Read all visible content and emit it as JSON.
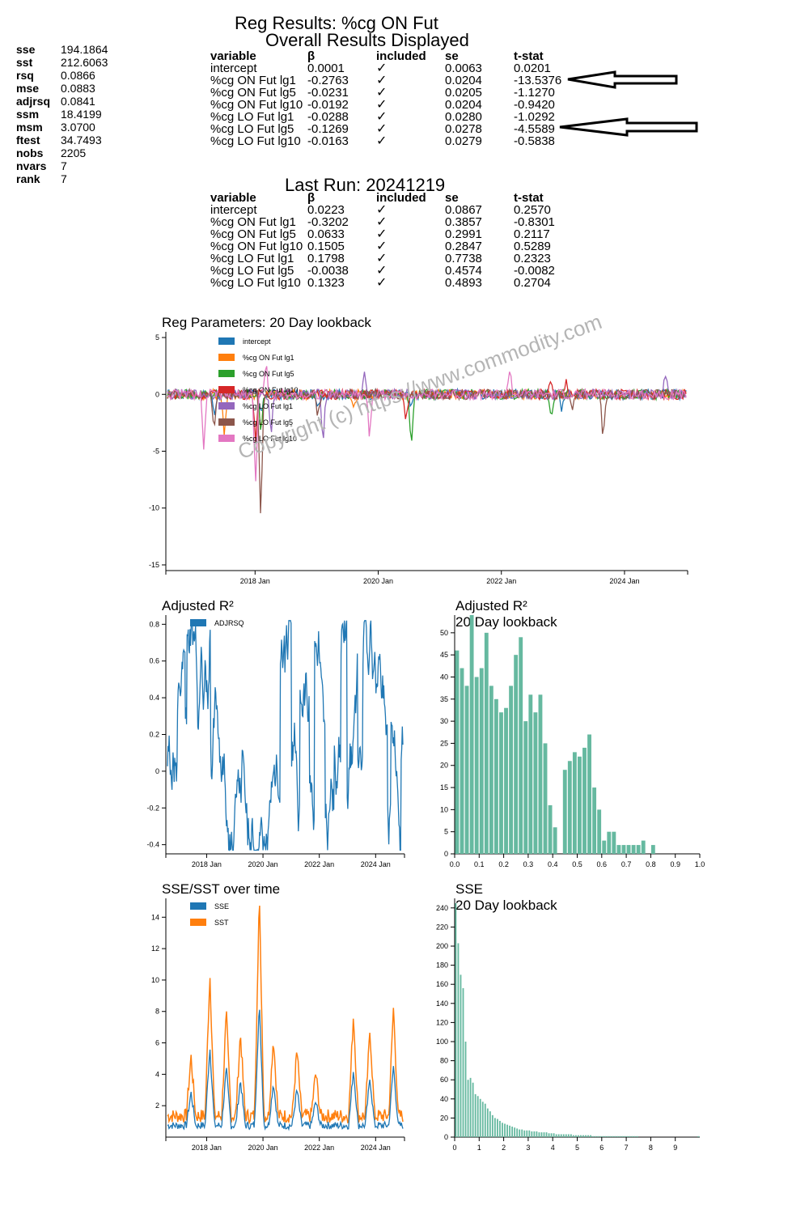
{
  "summary_stats": [
    {
      "key": "sse",
      "value": "194.1864"
    },
    {
      "key": "sst",
      "value": "212.6063"
    },
    {
      "key": "rsq",
      "value": "0.0866"
    },
    {
      "key": "mse",
      "value": "0.0883"
    },
    {
      "key": "adjrsq",
      "value": "0.0841"
    },
    {
      "key": "ssm",
      "value": "18.4199"
    },
    {
      "key": "msm",
      "value": "3.0700"
    },
    {
      "key": "ftest",
      "value": "34.7493"
    },
    {
      "key": "nobs",
      "value": "2205"
    },
    {
      "key": "nvars",
      "value": "7"
    },
    {
      "key": "rank",
      "value": "7"
    }
  ],
  "main_title": "Reg Results: %cg ON Fut",
  "overall_subtitle": "Overall Results Displayed",
  "table_headers": [
    "variable",
    "β",
    "included",
    "se",
    "t-stat"
  ],
  "check_mark": "✓",
  "overall_rows": [
    [
      "intercept",
      "0.0001",
      "0.0063",
      "0.0201"
    ],
    [
      "%cg ON Fut lg1",
      "-0.2763",
      "0.0204",
      "-13.5376"
    ],
    [
      "%cg ON Fut lg5",
      "-0.0231",
      "0.0205",
      "-1.1270"
    ],
    [
      "%cg ON Fut lg10",
      "-0.0192",
      "0.0204",
      "-0.9420"
    ],
    [
      "%cg LO Fut lg1",
      "-0.0288",
      "0.0280",
      "-1.0292"
    ],
    [
      "%cg LO Fut lg5",
      "-0.1269",
      "0.0278",
      "-4.5589"
    ],
    [
      "%cg LO Fut lg10",
      "-0.0163",
      "0.0279",
      "-0.5838"
    ]
  ],
  "last_run_title": "Last Run: 20241219",
  "last_run_rows": [
    [
      "intercept",
      "0.0223",
      "0.0867",
      "0.2570"
    ],
    [
      "%cg ON Fut lg1",
      "-0.3202",
      "0.3857",
      "-0.8301"
    ],
    [
      "%cg ON Fut lg5",
      "0.0633",
      "0.2991",
      "0.2117"
    ],
    [
      "%cg ON Fut lg10",
      "0.1505",
      "0.2847",
      "0.5289"
    ],
    [
      "%cg LO Fut lg1",
      "0.1798",
      "0.7738",
      "0.2323"
    ],
    [
      "%cg LO Fut lg5",
      "-0.0038",
      "0.4574",
      "-0.0082"
    ],
    [
      "%cg LO Fut lg10",
      "0.1323",
      "0.4893",
      "0.2704"
    ]
  ],
  "watermark": "Copyright (c) https://www.commodity.com",
  "colors": {
    "intercept": "#1f77b4",
    "on1": "#ff7f0e",
    "on5": "#2ca02c",
    "on10": "#d62728",
    "lo1": "#9467bd",
    "lo5": "#8c564b",
    "lo10": "#e377c2",
    "hist": "#66b9a0"
  },
  "chart_data": [
    {
      "type": "line",
      "title": "Reg Parameters: 20 Day lookback",
      "ylim": [
        -15.5,
        5.5
      ],
      "yticks": [
        5,
        0,
        -5,
        -10,
        -15
      ],
      "xticks": [
        "2018 Jan",
        "2020 Jan",
        "2022 Jan",
        "2024 Jan"
      ],
      "series": [
        {
          "name": "intercept",
          "color": "#1f77b4"
        },
        {
          "name": "%cg ON Fut lg1",
          "color": "#ff7f0e"
        },
        {
          "name": "%cg ON Fut lg5",
          "color": "#2ca02c"
        },
        {
          "name": "%cg ON Fut lg10",
          "color": "#d62728"
        },
        {
          "name": "%cg LO Fut lg1",
          "color": "#9467bd"
        },
        {
          "name": "%cg LO Fut lg5",
          "color": "#8c564b"
        },
        {
          "name": "%cg LO Fut lg10",
          "color": "#e377c2"
        }
      ],
      "notable_values": {
        "min": -11.3,
        "max": 2.8
      }
    },
    {
      "type": "line",
      "title": "Adjusted R²",
      "ylim": [
        -0.45,
        0.85
      ],
      "yticks": [
        0.8,
        0.6,
        0.4,
        0.2,
        0.0,
        -0.2,
        -0.4
      ],
      "xticks": [
        "2018 Jan",
        "2020 Jan",
        "2022 Jan",
        "2024 Jan"
      ],
      "series": [
        {
          "name": "ADJRSQ",
          "color": "#1f77b4"
        }
      ]
    },
    {
      "type": "bar",
      "title": "Adjusted R²",
      "subtitle": "20 Day lookback",
      "xlim": [
        0,
        1.0
      ],
      "xticks": [
        "0.0",
        "0.1",
        "0.2",
        "0.3",
        "0.4",
        "0.5",
        "0.6",
        "0.7",
        "0.8",
        "0.9",
        "1.0"
      ],
      "ylim": [
        0,
        54
      ],
      "yticks": [
        0,
        5,
        10,
        15,
        20,
        25,
        30,
        35,
        40,
        45,
        50
      ],
      "bin_width": 0.02,
      "values": [
        46,
        42,
        38,
        54,
        40,
        42,
        50,
        38,
        35,
        32,
        33,
        38,
        45,
        49,
        30,
        36,
        32,
        36,
        25,
        11,
        6,
        0,
        19,
        21,
        23,
        22,
        24,
        27,
        15,
        10,
        3,
        5,
        5,
        2,
        2,
        2,
        2,
        2,
        3,
        0,
        2,
        0,
        0,
        0,
        0,
        0,
        0,
        0,
        0,
        0
      ]
    },
    {
      "type": "line",
      "title": "SSE/SST over time",
      "ylim": [
        0,
        15.2
      ],
      "yticks": [
        2,
        4,
        6,
        8,
        10,
        12,
        14
      ],
      "xticks": [
        "2018 Jan",
        "2020 Jan",
        "2022 Jan",
        "2024 Jan"
      ],
      "series": [
        {
          "name": "SSE",
          "color": "#1f77b4"
        },
        {
          "name": "SST",
          "color": "#ff7f0e"
        }
      ]
    },
    {
      "type": "bar",
      "title": "SSE",
      "subtitle": "20 Day lookback",
      "xlim": [
        0,
        10
      ],
      "xticks": [
        "0",
        "1",
        "2",
        "3",
        "4",
        "5",
        "6",
        "7",
        "8",
        "9"
      ],
      "ylim": [
        0,
        250
      ],
      "yticks": [
        0,
        20,
        40,
        60,
        80,
        100,
        120,
        140,
        160,
        180,
        200,
        220,
        240
      ],
      "bin_width": 0.1,
      "values": [
        245,
        203,
        170,
        156,
        100,
        60,
        62,
        57,
        45,
        43,
        40,
        37,
        35,
        30,
        27,
        23,
        20,
        19,
        17,
        15,
        14,
        13,
        12,
        11,
        10,
        9,
        8,
        8,
        7,
        7,
        7,
        6,
        6,
        6,
        5,
        5,
        5,
        5,
        4,
        4,
        4,
        3,
        3,
        3,
        3,
        3,
        3,
        3,
        2,
        2,
        2,
        2,
        2,
        2,
        2,
        2,
        1,
        1,
        1,
        1,
        1,
        1,
        1,
        1,
        1,
        1,
        1,
        1,
        1,
        1,
        1,
        1,
        1,
        1,
        1,
        0,
        0,
        0,
        0,
        0,
        0,
        0,
        0,
        0,
        0,
        0,
        0,
        0,
        0,
        0,
        0,
        0,
        0,
        0,
        0,
        0,
        0,
        0,
        0,
        1
      ]
    }
  ]
}
